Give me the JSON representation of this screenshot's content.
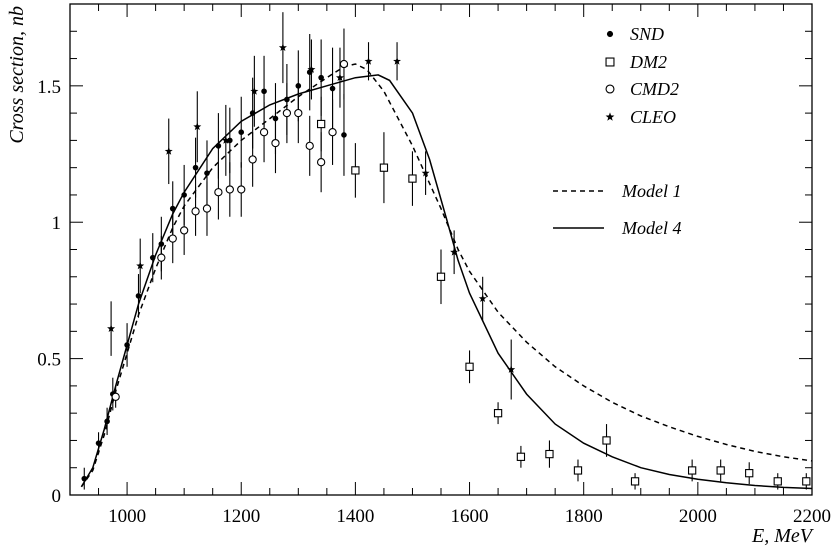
{
  "chart_data": {
    "type": "scatter",
    "title": "",
    "xlabel": "E, MeV",
    "ylabel": "Cross section, nb",
    "xlim": [
      900,
      2200
    ],
    "ylim": [
      0,
      1.8
    ],
    "x_ticks": [
      {
        "value": 1000,
        "label": "1000"
      },
      {
        "value": 1200,
        "label": "1200"
      },
      {
        "value": 1400,
        "label": "1400"
      },
      {
        "value": 1600,
        "label": "1600"
      },
      {
        "value": 1800,
        "label": "1800"
      },
      {
        "value": 2000,
        "label": "2000"
      },
      {
        "value": 2200,
        "label": "2200"
      }
    ],
    "y_ticks": [
      {
        "value": 0,
        "label": "0"
      },
      {
        "value": 0.5,
        "label": "0.5"
      },
      {
        "value": 1,
        "label": "1"
      },
      {
        "value": 1.5,
        "label": "1.5"
      }
    ],
    "grid": false,
    "legend_position": "top-right",
    "series": [
      {
        "name": "SND",
        "marker": "filled-circle",
        "points": [
          {
            "x": 925,
            "y": 0.06,
            "err": 0.04
          },
          {
            "x": 950,
            "y": 0.19,
            "err": 0.04
          },
          {
            "x": 965,
            "y": 0.27,
            "err": 0.05
          },
          {
            "x": 975,
            "y": 0.37,
            "err": 0.06
          },
          {
            "x": 1000,
            "y": 0.55,
            "err": 0.08
          },
          {
            "x": 1020,
            "y": 0.73,
            "err": 0.08
          },
          {
            "x": 1045,
            "y": 0.87,
            "err": 0.09
          },
          {
            "x": 1060,
            "y": 0.92,
            "err": 0.1
          },
          {
            "x": 1080,
            "y": 1.05,
            "err": 0.1
          },
          {
            "x": 1100,
            "y": 1.1,
            "err": 0.11
          },
          {
            "x": 1120,
            "y": 1.2,
            "err": 0.11
          },
          {
            "x": 1140,
            "y": 1.18,
            "err": 0.12
          },
          {
            "x": 1160,
            "y": 1.28,
            "err": 0.12
          },
          {
            "x": 1180,
            "y": 1.3,
            "err": 0.12
          },
          {
            "x": 1200,
            "y": 1.33,
            "err": 0.13
          },
          {
            "x": 1220,
            "y": 1.4,
            "err": 0.13
          },
          {
            "x": 1240,
            "y": 1.48,
            "err": 0.13
          },
          {
            "x": 1260,
            "y": 1.38,
            "err": 0.13
          },
          {
            "x": 1280,
            "y": 1.45,
            "err": 0.13
          },
          {
            "x": 1300,
            "y": 1.5,
            "err": 0.13
          },
          {
            "x": 1320,
            "y": 1.55,
            "err": 0.14
          },
          {
            "x": 1340,
            "y": 1.53,
            "err": 0.14
          },
          {
            "x": 1360,
            "y": 1.49,
            "err": 0.15
          },
          {
            "x": 1380,
            "y": 1.32,
            "err": 0.15
          }
        ]
      },
      {
        "name": "DM2",
        "marker": "open-square",
        "points": [
          {
            "x": 1340,
            "y": 1.36,
            "err": 0.1
          },
          {
            "x": 1400,
            "y": 1.19,
            "err": 0.1
          },
          {
            "x": 1450,
            "y": 1.2,
            "err": 0.13
          },
          {
            "x": 1500,
            "y": 1.16,
            "err": 0.1
          },
          {
            "x": 1550,
            "y": 0.8,
            "err": 0.1
          },
          {
            "x": 1600,
            "y": 0.47,
            "err": 0.06
          },
          {
            "x": 1650,
            "y": 0.3,
            "err": 0.04
          },
          {
            "x": 1690,
            "y": 0.14,
            "err": 0.04
          },
          {
            "x": 1740,
            "y": 0.15,
            "err": 0.05
          },
          {
            "x": 1790,
            "y": 0.09,
            "err": 0.04
          },
          {
            "x": 1840,
            "y": 0.2,
            "err": 0.06
          },
          {
            "x": 1890,
            "y": 0.05,
            "err": 0.03
          },
          {
            "x": 1990,
            "y": 0.09,
            "err": 0.04
          },
          {
            "x": 2040,
            "y": 0.09,
            "err": 0.04
          },
          {
            "x": 2090,
            "y": 0.08,
            "err": 0.04
          },
          {
            "x": 2140,
            "y": 0.05,
            "err": 0.03
          },
          {
            "x": 2190,
            "y": 0.05,
            "err": 0.03
          }
        ]
      },
      {
        "name": "CMD2",
        "marker": "open-circle",
        "points": [
          {
            "x": 980,
            "y": 0.36,
            "err": 0.04
          },
          {
            "x": 1060,
            "y": 0.87,
            "err": 0.08
          },
          {
            "x": 1080,
            "y": 0.94,
            "err": 0.09
          },
          {
            "x": 1100,
            "y": 0.97,
            "err": 0.09
          },
          {
            "x": 1120,
            "y": 1.04,
            "err": 0.09
          },
          {
            "x": 1140,
            "y": 1.05,
            "err": 0.1
          },
          {
            "x": 1160,
            "y": 1.11,
            "err": 0.1
          },
          {
            "x": 1180,
            "y": 1.12,
            "err": 0.1
          },
          {
            "x": 1200,
            "y": 1.12,
            "err": 0.1
          },
          {
            "x": 1220,
            "y": 1.23,
            "err": 0.1
          },
          {
            "x": 1240,
            "y": 1.33,
            "err": 0.11
          },
          {
            "x": 1260,
            "y": 1.29,
            "err": 0.11
          },
          {
            "x": 1280,
            "y": 1.4,
            "err": 0.11
          },
          {
            "x": 1300,
            "y": 1.4,
            "err": 0.11
          },
          {
            "x": 1320,
            "y": 1.28,
            "err": 0.11
          },
          {
            "x": 1340,
            "y": 1.22,
            "err": 0.11
          },
          {
            "x": 1360,
            "y": 1.33,
            "err": 0.12
          },
          {
            "x": 1380,
            "y": 1.58,
            "err": 0.13
          }
        ]
      },
      {
        "name": "CLEO",
        "marker": "star",
        "points": [
          {
            "x": 972,
            "y": 0.61,
            "err": 0.1
          },
          {
            "x": 1023,
            "y": 0.84,
            "err": 0.1
          },
          {
            "x": 1073,
            "y": 1.26,
            "err": 0.12
          },
          {
            "x": 1123,
            "y": 1.35,
            "err": 0.13
          },
          {
            "x": 1173,
            "y": 1.3,
            "err": 0.13
          },
          {
            "x": 1223,
            "y": 1.48,
            "err": 0.13
          },
          {
            "x": 1273,
            "y": 1.64,
            "err": 0.13
          },
          {
            "x": 1323,
            "y": 1.56,
            "err": 0.11
          },
          {
            "x": 1373,
            "y": 1.53,
            "err": 0.11
          },
          {
            "x": 1423,
            "y": 1.59,
            "err": 0.07
          },
          {
            "x": 1473,
            "y": 1.59,
            "err": 0.07
          },
          {
            "x": 1523,
            "y": 1.18,
            "err": 0.08
          },
          {
            "x": 1573,
            "y": 0.89,
            "err": 0.08
          },
          {
            "x": 1623,
            "y": 0.72,
            "err": 0.08
          },
          {
            "x": 1673,
            "y": 0.46,
            "err": 0.11
          }
        ]
      }
    ],
    "curves": [
      {
        "name": "Model 1",
        "style": "dashed",
        "points": [
          [
            920,
            0.03
          ],
          [
            940,
            0.09
          ],
          [
            960,
            0.22
          ],
          [
            980,
            0.38
          ],
          [
            1000,
            0.52
          ],
          [
            1020,
            0.66
          ],
          [
            1050,
            0.83
          ],
          [
            1080,
            0.98
          ],
          [
            1100,
            1.06
          ],
          [
            1150,
            1.2
          ],
          [
            1200,
            1.3
          ],
          [
            1250,
            1.38
          ],
          [
            1300,
            1.46
          ],
          [
            1350,
            1.53
          ],
          [
            1380,
            1.57
          ],
          [
            1400,
            1.58
          ],
          [
            1420,
            1.56
          ],
          [
            1450,
            1.48
          ],
          [
            1500,
            1.28
          ],
          [
            1550,
            1.05
          ],
          [
            1580,
            0.9
          ],
          [
            1600,
            0.82
          ],
          [
            1650,
            0.67
          ],
          [
            1700,
            0.56
          ],
          [
            1750,
            0.47
          ],
          [
            1800,
            0.4
          ],
          [
            1850,
            0.34
          ],
          [
            1900,
            0.29
          ],
          [
            1950,
            0.25
          ],
          [
            2000,
            0.215
          ],
          [
            2050,
            0.185
          ],
          [
            2100,
            0.16
          ],
          [
            2150,
            0.14
          ],
          [
            2200,
            0.125
          ]
        ]
      },
      {
        "name": "Model 4",
        "style": "solid",
        "points": [
          [
            920,
            0.03
          ],
          [
            940,
            0.1
          ],
          [
            960,
            0.24
          ],
          [
            980,
            0.4
          ],
          [
            1000,
            0.55
          ],
          [
            1020,
            0.7
          ],
          [
            1050,
            0.88
          ],
          [
            1080,
            1.03
          ],
          [
            1100,
            1.11
          ],
          [
            1150,
            1.27
          ],
          [
            1200,
            1.37
          ],
          [
            1250,
            1.43
          ],
          [
            1300,
            1.47
          ],
          [
            1350,
            1.5
          ],
          [
            1400,
            1.53
          ],
          [
            1440,
            1.54
          ],
          [
            1460,
            1.52
          ],
          [
            1500,
            1.4
          ],
          [
            1530,
            1.23
          ],
          [
            1560,
            1.01
          ],
          [
            1580,
            0.86
          ],
          [
            1600,
            0.74
          ],
          [
            1650,
            0.52
          ],
          [
            1700,
            0.37
          ],
          [
            1750,
            0.26
          ],
          [
            1800,
            0.19
          ],
          [
            1850,
            0.14
          ],
          [
            1900,
            0.1
          ],
          [
            1950,
            0.075
          ],
          [
            2000,
            0.058
          ],
          [
            2050,
            0.045
          ],
          [
            2100,
            0.035
          ],
          [
            2150,
            0.028
          ],
          [
            2200,
            0.024
          ]
        ]
      }
    ]
  }
}
